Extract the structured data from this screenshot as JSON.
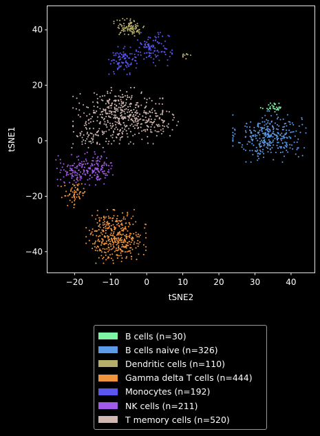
{
  "chart_data": {
    "type": "scatter",
    "xlabel": "tSNE2",
    "ylabel": "tSNE1",
    "xlim": [
      -27.5,
      46.5
    ],
    "ylim": [
      -47.5,
      48.5
    ],
    "xticks": [
      -20,
      -10,
      0,
      10,
      20,
      30,
      40
    ],
    "yticks": [
      -40,
      -20,
      0,
      20,
      40
    ],
    "grid": false,
    "legend_position": "below",
    "series": [
      {
        "name": "B cells (n=30)",
        "color": "#7df5a5",
        "count": 30,
        "clusters": [
          {
            "cx": 35.0,
            "cy": 12.2,
            "sx": 1.6,
            "sy": 0.9,
            "n": 30
          }
        ]
      },
      {
        "name": "B cells naive (n=326)",
        "color": "#5b9be8",
        "count": 326,
        "clusters": [
          {
            "cx": 34.0,
            "cy": 1.5,
            "sx": 4.4,
            "sy": 4.0,
            "n": 326
          }
        ]
      },
      {
        "name": "Dendritic cells (n=110)",
        "color": "#b5ad6a",
        "count": 110,
        "clusters": [
          {
            "cx": -4.5,
            "cy": 40.8,
            "sx": 2.0,
            "sy": 1.4,
            "n": 100
          },
          {
            "cx": 10.5,
            "cy": 31.0,
            "sx": 1.0,
            "sy": 0.8,
            "n": 10
          }
        ]
      },
      {
        "name": "Gamma delta T cells (n=444)",
        "color": "#f0953d",
        "count": 444,
        "clusters": [
          {
            "cx": -8.5,
            "cy": -34.5,
            "sx": 3.6,
            "sy": 4.2,
            "n": 384
          },
          {
            "cx": -20.0,
            "cy": -19.0,
            "sx": 1.8,
            "sy": 2.2,
            "n": 60
          }
        ]
      },
      {
        "name": "Monocytes (n=192)",
        "color": "#5a56ef",
        "count": 192,
        "clusters": [
          {
            "cx": 1.5,
            "cy": 33.0,
            "sx": 2.4,
            "sy": 2.6,
            "n": 110
          },
          {
            "cx": -6.5,
            "cy": 29.0,
            "sx": 1.8,
            "sy": 2.2,
            "n": 82
          }
        ]
      },
      {
        "name": "NK cells (n=211)",
        "color": "#a25ae8",
        "count": 211,
        "clusters": [
          {
            "cx": -14.0,
            "cy": -10.0,
            "sx": 2.2,
            "sy": 2.6,
            "n": 130
          },
          {
            "cx": -20.5,
            "cy": -11.0,
            "sx": 2.4,
            "sy": 2.6,
            "n": 81
          }
        ]
      },
      {
        "name": "T memory cells (n=520)",
        "color": "#d2b8b3",
        "count": 520,
        "clusters": [
          {
            "cx": -8.0,
            "cy": 9.0,
            "sx": 5.4,
            "sy": 4.4,
            "n": 380
          },
          {
            "cx": 1.5,
            "cy": 7.0,
            "sx": 3.5,
            "sy": 3.6,
            "n": 100
          },
          {
            "cx": -16.0,
            "cy": 1.0,
            "sx": 2.4,
            "sy": 2.2,
            "n": 40
          }
        ]
      }
    ]
  }
}
